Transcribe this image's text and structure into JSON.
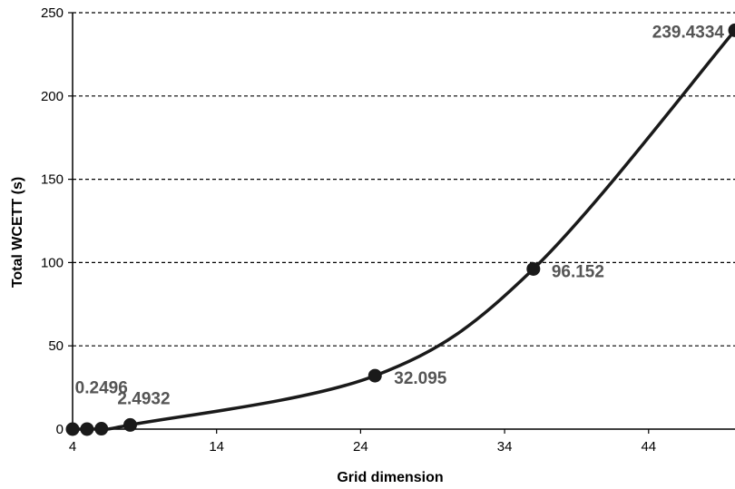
{
  "chart_data": {
    "type": "line",
    "title": "",
    "xlabel": "Grid dimension",
    "ylabel": "Total WCETT (s)",
    "xlim": [
      4,
      50
    ],
    "ylim": [
      0,
      250
    ],
    "x_ticks": [
      "4",
      "14",
      "24",
      "34",
      "44"
    ],
    "y_ticks": [
      "0",
      "50",
      "100",
      "150",
      "200",
      "250"
    ],
    "grid": "horizontal dashed",
    "legend": "none",
    "series": [
      {
        "x": [
          4,
          5,
          6,
          8,
          25,
          36,
          50
        ],
        "y": [
          0.0,
          0.03,
          0.2496,
          2.4932,
          32.095,
          96.152,
          239.4334
        ],
        "point_labels": [
          "",
          "",
          "0.2496",
          "2.4932",
          "32.095",
          "96.152",
          "239.4334"
        ]
      }
    ],
    "colors": {
      "line": "#1a1a1a",
      "grid": "#000000",
      "label": "#555555"
    }
  }
}
